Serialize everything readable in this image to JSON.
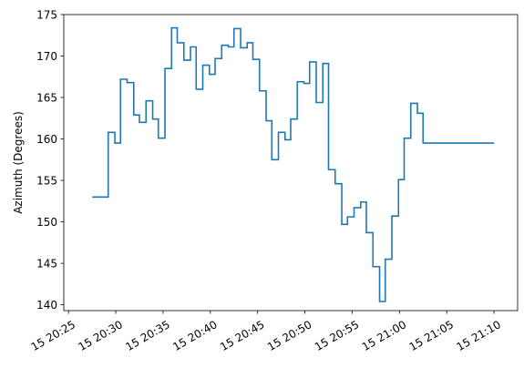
{
  "chart_data": {
    "type": "line",
    "line_style": "step-post",
    "xlabel": "",
    "ylabel": "Azimuth (Degrees)",
    "ylim": [
      139.3,
      175
    ],
    "xlim": [
      "2021-01-15T20:24:30",
      "2021-01-15T21:12:30"
    ],
    "grid": false,
    "y_ticks": [
      140,
      145,
      150,
      155,
      160,
      165,
      170,
      175
    ],
    "x_ticks": [
      "2021-01-15T20:25",
      "2021-01-15T20:30",
      "2021-01-15T20:35",
      "2021-01-15T20:40",
      "2021-01-15T20:45",
      "2021-01-15T20:50",
      "2021-01-15T20:55",
      "2021-01-15T21:00",
      "2021-01-15T21:05",
      "2021-01-15T21:10"
    ],
    "x_tick_labels": [
      "15 20:25",
      "15 20:30",
      "15 20:35",
      "15 20:40",
      "15 20:45",
      "15 20:50",
      "15 20:55",
      "15 21:00",
      "15 21:05",
      "15 21:10"
    ],
    "series": [
      {
        "color": "#1f77b4",
        "x": [
          "2021-01-15T20:27:30",
          "2021-01-15T20:29:12",
          "2021-01-15T20:29:54",
          "2021-01-15T20:30:30",
          "2021-01-15T20:31:12",
          "2021-01-15T20:31:54",
          "2021-01-15T20:32:30",
          "2021-01-15T20:33:12",
          "2021-01-15T20:33:54",
          "2021-01-15T20:34:30",
          "2021-01-15T20:35:12",
          "2021-01-15T20:35:54",
          "2021-01-15T20:36:30",
          "2021-01-15T20:37:12",
          "2021-01-15T20:37:54",
          "2021-01-15T20:38:30",
          "2021-01-15T20:39:12",
          "2021-01-15T20:39:54",
          "2021-01-15T20:40:30",
          "2021-01-15T20:41:12",
          "2021-01-15T20:41:54",
          "2021-01-15T20:42:30",
          "2021-01-15T20:43:12",
          "2021-01-15T20:43:54",
          "2021-01-15T20:44:30",
          "2021-01-15T20:45:12",
          "2021-01-15T20:45:54",
          "2021-01-15T20:46:30",
          "2021-01-15T20:47:12",
          "2021-01-15T20:47:54",
          "2021-01-15T20:48:30",
          "2021-01-15T20:49:12",
          "2021-01-15T20:49:54",
          "2021-01-15T20:50:30",
          "2021-01-15T20:51:12",
          "2021-01-15T20:51:54",
          "2021-01-15T20:52:30",
          "2021-01-15T20:53:12",
          "2021-01-15T20:53:54",
          "2021-01-15T20:54:30",
          "2021-01-15T20:55:12",
          "2021-01-15T20:55:54",
          "2021-01-15T20:56:30",
          "2021-01-15T20:57:12",
          "2021-01-15T20:57:54",
          "2021-01-15T20:58:30",
          "2021-01-15T20:59:12",
          "2021-01-15T20:59:54",
          "2021-01-15T21:00:30",
          "2021-01-15T21:01:12",
          "2021-01-15T21:01:54",
          "2021-01-15T21:02:30",
          "2021-01-15T21:03:12",
          "2021-01-15T21:03:54",
          "2021-01-15T21:04:30",
          "2021-01-15T21:05:12",
          "2021-01-15T21:05:54",
          "2021-01-15T21:06:30",
          "2021-01-15T21:07:12",
          "2021-01-15T21:10:00"
        ],
        "y": [
          153.0,
          160.8,
          159.5,
          167.2,
          166.8,
          162.9,
          162.0,
          164.6,
          162.4,
          160.1,
          168.5,
          173.4,
          171.6,
          169.5,
          171.1,
          166.0,
          168.9,
          167.8,
          169.7,
          171.3,
          171.1,
          173.3,
          171.0,
          171.6,
          169.6,
          165.8,
          162.2,
          157.5,
          160.8,
          159.9,
          162.4,
          166.9,
          166.7,
          169.3,
          164.4,
          169.1,
          156.3,
          154.6,
          149.7,
          150.6,
          151.7,
          152.4,
          148.7,
          144.6,
          140.4,
          145.5,
          150.7,
          155.1,
          160.1,
          164.3,
          163.1,
          159.5,
          159.5,
          159.5,
          159.5,
          159.5,
          159.5,
          159.5,
          159.5,
          159.5
        ]
      }
    ]
  }
}
